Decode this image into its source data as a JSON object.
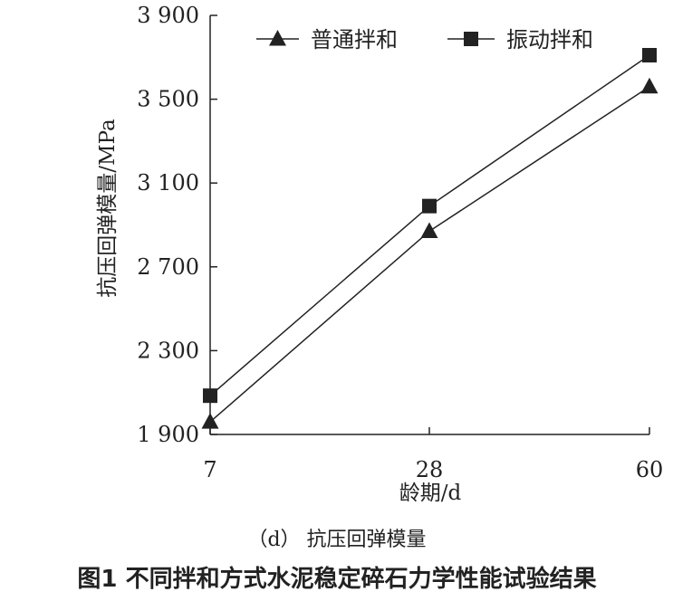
{
  "chart_data": {
    "type": "line",
    "x": [
      7,
      28,
      60
    ],
    "ylabel": "抗压回弹模量/MPa",
    "xlabel": "龄期/d",
    "ylim": [
      1900,
      3900
    ],
    "yticks": [
      "1 900",
      "2 300",
      "2 700",
      "3 100",
      "3 500",
      "3 900"
    ],
    "ytick_values": [
      1900,
      2300,
      2700,
      3100,
      3500,
      3900
    ],
    "xticks": [
      "7",
      "28",
      "60"
    ],
    "grid": false,
    "legend_position": "top",
    "series": [
      {
        "name": "普通拌和",
        "marker": "triangle",
        "values": [
          1960,
          2870,
          3560
        ]
      },
      {
        "name": "振动拌和",
        "marker": "square",
        "values": [
          2085,
          2990,
          3710
        ]
      }
    ],
    "subtitle": "（d） 抗压回弹模量",
    "caption": "图1  不同拌和方式水泥稳定碎石力学性能试验结果"
  },
  "colors": {
    "line": "#222222",
    "text": "#222222"
  }
}
